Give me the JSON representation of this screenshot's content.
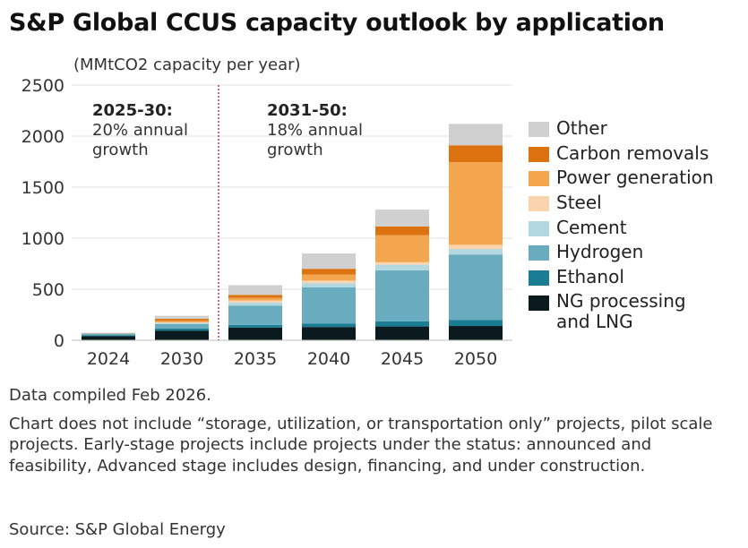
{
  "title": "S&P Global CCUS capacity outlook by application",
  "chart_data": {
    "type": "bar",
    "stacked": true,
    "ylabel": "(MMtCO2 capacity per year)",
    "ylim": [
      0,
      2500
    ],
    "yticks": [
      0,
      500,
      1000,
      1500,
      2000,
      2500
    ],
    "grid": true,
    "legend_position": "right",
    "categories": [
      "2024",
      "2030",
      "2035",
      "2040",
      "2045",
      "2050"
    ],
    "series": [
      {
        "name": "NG processing and LNG",
        "color": "#0a1a1f",
        "values": [
          40,
          95,
          125,
          130,
          135,
          140
        ]
      },
      {
        "name": "Ethanol",
        "color": "#1b7d93",
        "values": [
          10,
          20,
          25,
          35,
          50,
          60
        ]
      },
      {
        "name": "Hydrogen",
        "color": "#6aacbf",
        "values": [
          15,
          45,
          190,
          355,
          500,
          640
        ]
      },
      {
        "name": "Cement",
        "color": "#b4d8e0",
        "values": [
          2,
          10,
          30,
          40,
          55,
          55
        ]
      },
      {
        "name": "Steel",
        "color": "#fbd3ad",
        "values": [
          1,
          5,
          20,
          25,
          25,
          40
        ]
      },
      {
        "name": "Power generation",
        "color": "#f3a64e",
        "values": [
          1,
          15,
          25,
          60,
          265,
          810
        ]
      },
      {
        "name": "Carbon removals",
        "color": "#dd7310",
        "values": [
          2,
          20,
          30,
          55,
          85,
          165
        ]
      },
      {
        "name": "Other",
        "color": "#d0d0d0",
        "values": [
          4,
          30,
          95,
          150,
          165,
          210
        ]
      }
    ],
    "divider_between": [
      "2030",
      "2035"
    ],
    "annotations": [
      {
        "heading": "2025-30:",
        "lines": [
          "20% annual",
          "growth"
        ]
      },
      {
        "heading": "2031-50:",
        "lines": [
          "18% annual",
          "growth"
        ]
      }
    ]
  },
  "notes": {
    "compiled": "Data compiled Feb 2026.",
    "disclaimer": "Chart does not include “storage, utilization,  or transportation only” projects, pilot scale projects. Early-stage projects include projects under the status: announced and feasibility, Advanced stage includes design, financing, and under construction.",
    "source": "Source: S&P Global Energy"
  }
}
